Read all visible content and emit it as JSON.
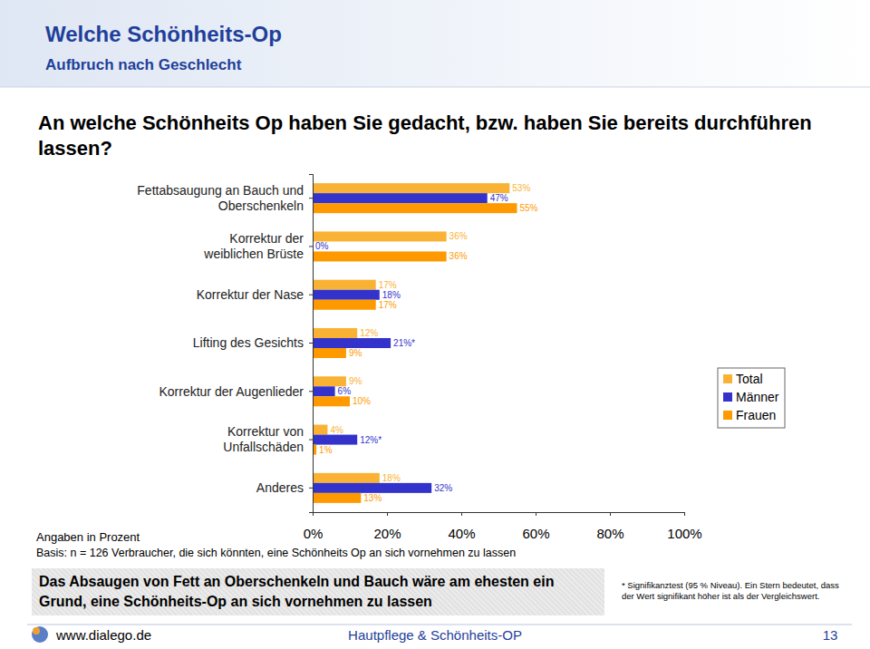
{
  "chart_data": {
    "type": "bar",
    "orientation": "horizontal",
    "title": "Welche Schönheits-Op",
    "subtitle": "Aufbruch nach Geschlecht",
    "question": "An welche Schönheits Op haben Sie gedacht, bzw. haben Sie bereits durchführen lassen?",
    "categories": [
      "Fettabsaugung an Bauch und\nOberschenkeln",
      "Korrektur der\nweiblichen Brüste",
      "Korrektur der Nase",
      "Lifting des Gesichts",
      "Korrektur der Augenlieder",
      "Korrektur von\nUnfallschäden",
      "Anderes"
    ],
    "series": [
      {
        "name": "Total",
        "color": "#F9B233",
        "values": [
          53,
          36,
          17,
          12,
          9,
          4,
          18
        ],
        "value_labels": [
          "53%",
          "36%",
          "17%",
          "12%",
          "9%",
          "4%",
          "18%"
        ]
      },
      {
        "name": "Männer",
        "color": "#3333CC",
        "values": [
          47,
          0,
          18,
          21,
          6,
          12,
          32
        ],
        "value_labels": [
          "47%",
          "0%",
          "18%",
          "21%*",
          "6%",
          "12%*",
          "32%"
        ]
      },
      {
        "name": "Frauen",
        "color": "#FF9900",
        "values": [
          55,
          36,
          17,
          9,
          10,
          1,
          13
        ],
        "value_labels": [
          "55%",
          "36%",
          "17%",
          "9%",
          "10%",
          "1%",
          "13%"
        ]
      }
    ],
    "xlim": [
      0,
      100
    ],
    "xticks": [
      {
        "value": 0,
        "label": "0%"
      },
      {
        "value": 20,
        "label": "20%"
      },
      {
        "value": 40,
        "label": "40%"
      },
      {
        "value": 60,
        "label": "60%"
      },
      {
        "value": 80,
        "label": "80%"
      },
      {
        "value": 100,
        "label": "100%"
      }
    ],
    "xlabel": "Angaben in Prozent",
    "note": "Basis: n = 126 Verbraucher, die sich könnten, eine Schönheits Op an sich vornehmen zu lassen",
    "conclusion": "Das Absaugen von Fett an Oberschenkeln und Bauch wäre am ehesten ein Grund, eine Schönheits-Op an sich vornehmen zu lassen",
    "footnote": "* Signifikanztest (95 % Niveau). Ein Stern bedeutet, dass der Wert signifikant höher ist als der Vergleichswert.",
    "footer": {
      "left": "www.dialego.de",
      "center": "Hautpflege & Schönheits-OP",
      "page": "13"
    },
    "data_labels": true,
    "legend": "right",
    "grid": false
  }
}
